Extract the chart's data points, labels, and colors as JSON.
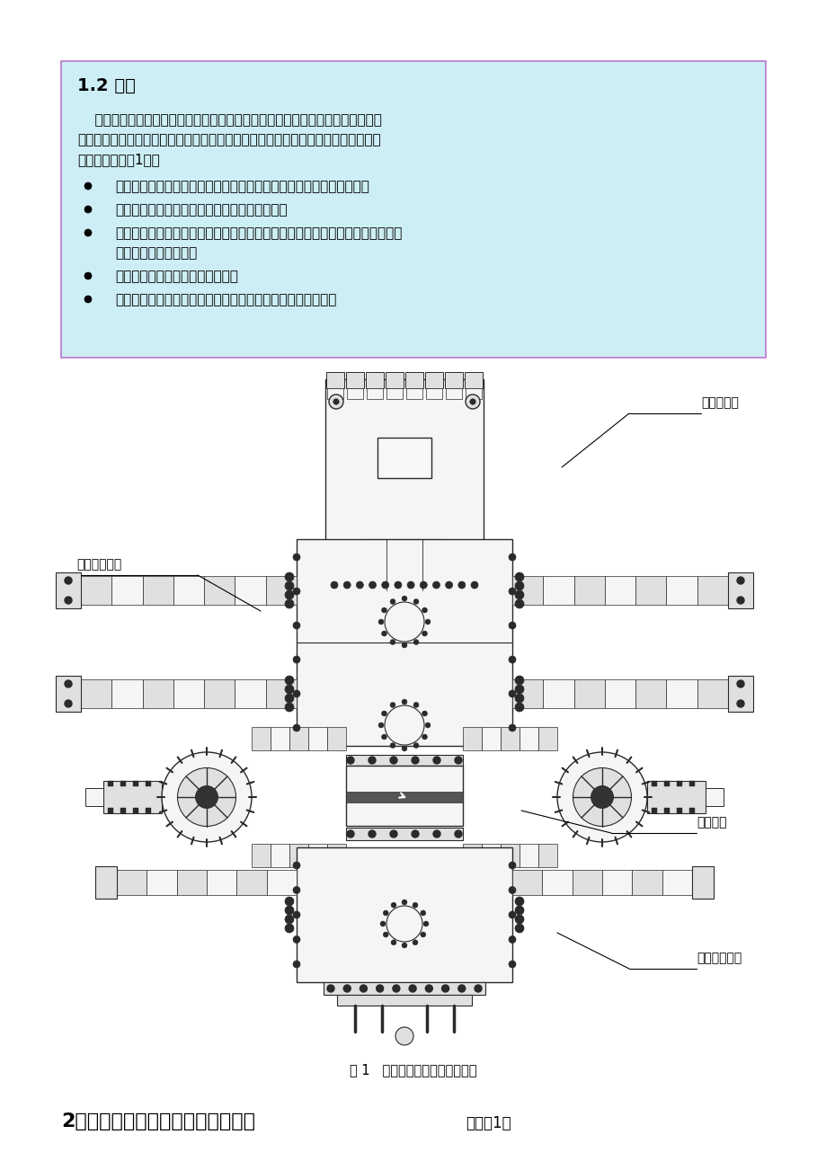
{
  "page_bg": "#ffffff",
  "box_bg": "#cdeef5",
  "box_border": "#bb77cc",
  "section_title": "1.2 用途",
  "para_text_lines": [
    "    液压控制的闸板防喷器是井控装置的一个重要组成部分。主要用途是在钻井、修",
    "井、试油等作业中控制井口压力，有效地防止井喷事故发生，实现安全施工。能完成",
    "以下作业（见图1）："
  ],
  "bullets": [
    "当井内有管柱时，配上相应管子闸板能封闭套管与管柱间的环行空间；",
    "当井内无管柱时，配上全封闸板能全封闭井口；",
    [
      "在封闭情况下，可通过四通及壳体旁侧出口所连接的管汇进行泥浆循环、节流放",
      "喷、压井等特殊作业；"
    ],
    "必要时，管子闸板可以悬挂钻具。",
    "在特殊情况下，配置剪切闸板，可切断钻具后达到封井目的。"
  ],
  "fig_caption": "图 1   闸板防喷器安装使用示意图",
  "section2_title": "2．闸板防喷器规格及主要技术参数",
  "section2_suffix": "（见表1）",
  "label_huanxing": "环形防喷器",
  "label_shuangban": "双闸板防喷器",
  "label_zuanjing": "钻井四通",
  "label_danjin": "单闸板防喷器",
  "text_color": "#000000",
  "line_color": "#333333",
  "fill_light": "#f5f5f5",
  "fill_mid": "#e0e0e0",
  "fill_dark": "#888888"
}
